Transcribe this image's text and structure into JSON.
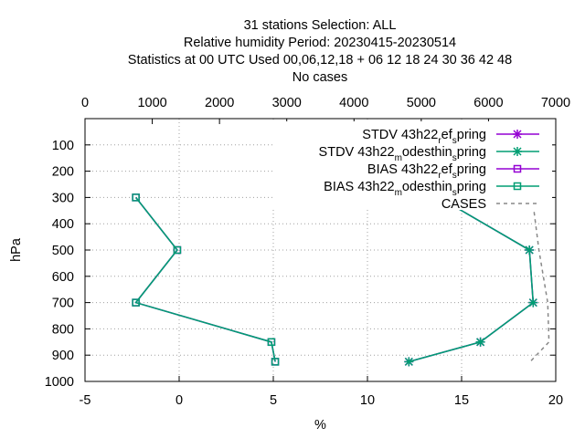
{
  "chart_data": {
    "type": "line",
    "title_lines": [
      "31 stations Selection: ALL",
      "Relative humidity  Period: 20230415-20230514",
      "Statistics at 00 UTC  Used  00,06,12,18  + 06 12 18 24 30 36 42 48",
      "No cases"
    ],
    "xlabel": "%",
    "ylabel": "hPa",
    "x2label": "",
    "xlim": [
      -5,
      20
    ],
    "ylim": [
      1000,
      0
    ],
    "x2lim": [
      0,
      7000
    ],
    "x_ticks": [
      "-5",
      "0",
      "5",
      "10",
      "15",
      "20"
    ],
    "y_ticks": [
      "100",
      "200",
      "300",
      "400",
      "500",
      "600",
      "700",
      "800",
      "900",
      "1000"
    ],
    "x2_ticks": [
      "0",
      "1000",
      "2000",
      "3000",
      "4000",
      "5000",
      "6000",
      "7000"
    ],
    "grid": true,
    "legend_position": "top-right",
    "series": [
      {
        "name": "STDV 43h22_ref_spring",
        "legend": [
          "STDV 43h22",
          "r",
          "ef",
          "s",
          "pring"
        ],
        "color": "#9400d3",
        "marker": "x",
        "points": [
          [
            13.8,
            300
          ],
          [
            18.6,
            500
          ],
          [
            18.8,
            700
          ],
          [
            16.0,
            850
          ],
          [
            12.2,
            925
          ]
        ]
      },
      {
        "name": "STDV 43h22_modesthin_spring",
        "legend": [
          "STDV 43h22",
          "m",
          "odesthin",
          "s",
          "pring"
        ],
        "color": "#009e73",
        "marker": "x",
        "points": [
          [
            13.8,
            300
          ],
          [
            18.6,
            500
          ],
          [
            18.8,
            700
          ],
          [
            16.0,
            850
          ],
          [
            12.2,
            925
          ]
        ]
      },
      {
        "name": "BIAS 43h22_ref_spring",
        "legend": [
          "BIAS 43h22",
          "r",
          "ef",
          "s",
          "pring"
        ],
        "color": "#9400d3",
        "marker": "square",
        "points": [
          [
            -2.3,
            300
          ],
          [
            -0.1,
            500
          ],
          [
            -2.3,
            700
          ],
          [
            4.9,
            850
          ],
          [
            5.1,
            925
          ]
        ]
      },
      {
        "name": "BIAS 43h22_modesthin_spring",
        "legend": [
          "BIAS 43h22",
          "m",
          "odesthin",
          "s",
          "pring"
        ],
        "color": "#009e73",
        "marker": "square",
        "points": [
          [
            -2.3,
            300
          ],
          [
            -0.1,
            500
          ],
          [
            -2.3,
            700
          ],
          [
            4.9,
            850
          ],
          [
            5.1,
            925
          ]
        ]
      },
      {
        "name": "CASES",
        "legend": [
          "CASES"
        ],
        "color": "#888888",
        "marker": "none",
        "dashed": true,
        "axis": "x2",
        "points": [
          [
            6650,
            300
          ],
          [
            6750,
            500
          ],
          [
            6880,
            700
          ],
          [
            6900,
            850
          ],
          [
            6620,
            925
          ]
        ]
      }
    ]
  }
}
